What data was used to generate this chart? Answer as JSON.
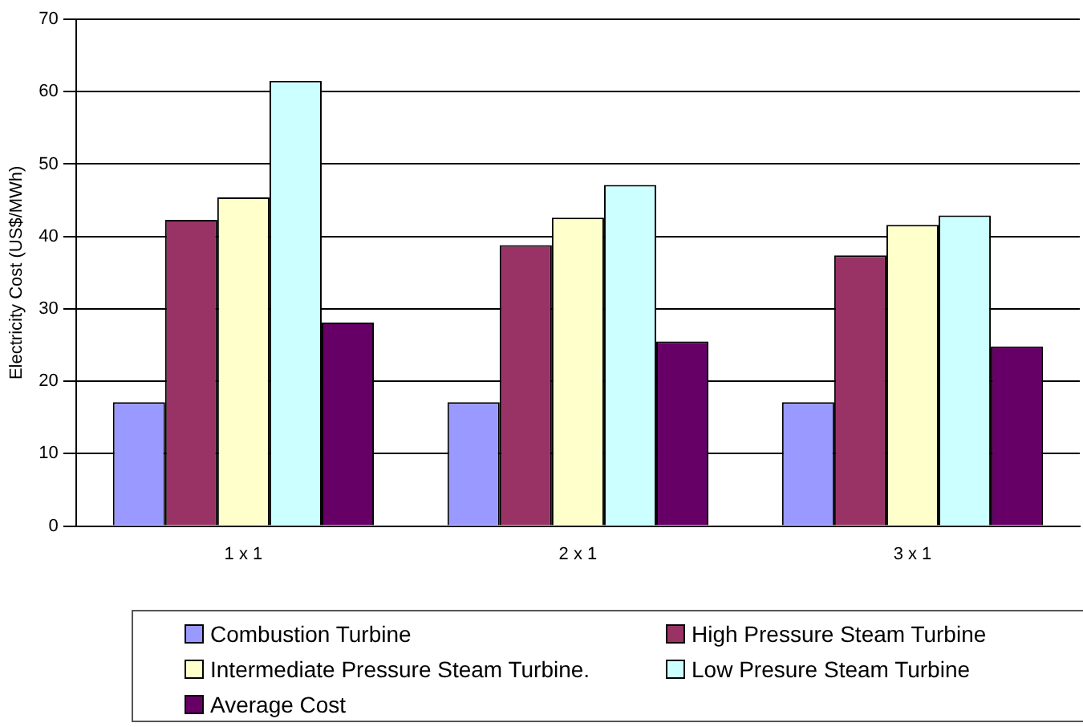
{
  "chart_data": {
    "type": "bar",
    "ylabel": "Electricity Cost (US$/MWh)",
    "categories": [
      "1 x 1",
      "2 x 1",
      "3 x 1"
    ],
    "series": [
      {
        "name": "Combustion Turbine",
        "color": "#9999ff",
        "values": [
          17.1,
          17.1,
          17.1
        ]
      },
      {
        "name": "High Pressure Steam Turbine",
        "color": "#993366",
        "values": [
          42.3,
          38.8,
          37.4
        ]
      },
      {
        "name": "Intermediate Pressure Steam Turbine.",
        "color": "#ffffcc",
        "values": [
          45.4,
          42.6,
          41.6
        ]
      },
      {
        "name": "Low Presure Steam Turbine",
        "color": "#ccffff",
        "values": [
          61.5,
          47.1,
          42.9
        ]
      },
      {
        "name": "Average Cost",
        "color": "#660066",
        "values": [
          28.1,
          25.5,
          24.8
        ]
      }
    ],
    "ylim": [
      0,
      70
    ],
    "yticks": [
      0,
      10,
      20,
      30,
      40,
      50,
      60,
      70
    ],
    "grid": "y",
    "legend": "bottom"
  }
}
